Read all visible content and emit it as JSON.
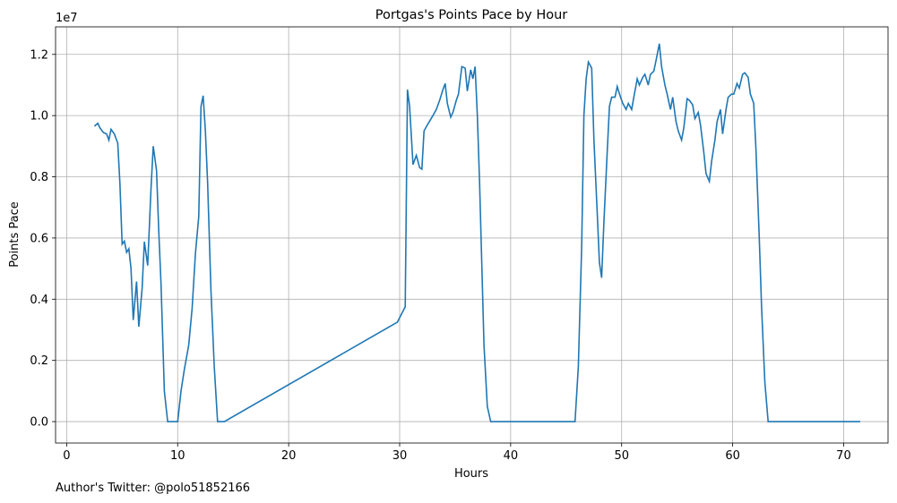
{
  "footer_text": "Author's Twitter: @polo51852166",
  "chart_data": {
    "type": "line",
    "title": "Portgas's Points Pace by Hour",
    "xlabel": "Hours",
    "ylabel": "Points Pace",
    "y_offset_label": "1e7",
    "xlim": [
      -1,
      74
    ],
    "ylim": [
      -0.07,
      1.29
    ],
    "y_scale_note": "values in units of 1e7",
    "x_ticks": [
      0,
      10,
      20,
      30,
      40,
      50,
      60,
      70
    ],
    "x_tick_labels": [
      "0",
      "10",
      "20",
      "30",
      "40",
      "50",
      "60",
      "70"
    ],
    "y_ticks": [
      0.0,
      0.2,
      0.4,
      0.6,
      0.8,
      1.0,
      1.2
    ],
    "y_tick_labels": [
      "0.0",
      "0.2",
      "0.4",
      "0.6",
      "0.8",
      "1.0",
      "1.2"
    ],
    "grid": true,
    "line_color": "#1f77b4",
    "series": [
      {
        "x": [
          2.5,
          2.8,
          3.0,
          3.3,
          3.6,
          3.8,
          4.0,
          4.3,
          4.6,
          4.8,
          5.0,
          5.2,
          5.4,
          5.6,
          5.8,
          6.0,
          6.3,
          6.5,
          6.8,
          7.0,
          7.3,
          7.6,
          7.8,
          8.1,
          8.3,
          8.5,
          8.8,
          9.1,
          9.3,
          9.6,
          10.0,
          10.3,
          10.6,
          11.0,
          11.3,
          11.6,
          11.9,
          12.1,
          12.3,
          12.5,
          12.7,
          13.0,
          13.3,
          13.6,
          13.9,
          14.2,
          29.8,
          30.5,
          30.7,
          30.9,
          31.2,
          31.5,
          31.8,
          32.0,
          32.2,
          32.5,
          33.0,
          33.3,
          33.6,
          33.9,
          34.1,
          34.3,
          34.6,
          34.8,
          35.1,
          35.3,
          35.6,
          35.9,
          36.1,
          36.4,
          36.6,
          36.8,
          37.0,
          37.2,
          37.6,
          37.9,
          38.2,
          45.5,
          45.8,
          46.1,
          46.4,
          46.6,
          46.8,
          47.0,
          47.3,
          47.5,
          47.8,
          48.0,
          48.2,
          48.4,
          48.7,
          48.9,
          49.1,
          49.4,
          49.6,
          49.9,
          50.1,
          50.4,
          50.6,
          50.9,
          51.1,
          51.4,
          51.6,
          51.9,
          52.1,
          52.4,
          52.6,
          52.9,
          53.1,
          53.4,
          53.6,
          53.9,
          54.1,
          54.4,
          54.6,
          54.9,
          55.1,
          55.4,
          55.6,
          55.9,
          56.1,
          56.4,
          56.6,
          56.9,
          57.1,
          57.4,
          57.6,
          57.9,
          58.1,
          58.4,
          58.6,
          58.9,
          59.1,
          59.4,
          59.6,
          59.9,
          60.1,
          60.4,
          60.6,
          60.9,
          61.1,
          61.4,
          61.6,
          61.9,
          62.1,
          62.4,
          62.6,
          62.9,
          63.2,
          71.5
        ],
        "y": [
          0.965,
          0.975,
          0.96,
          0.945,
          0.94,
          0.92,
          0.955,
          0.94,
          0.91,
          0.78,
          0.58,
          0.59,
          0.553,
          0.565,
          0.5,
          0.332,
          0.458,
          0.31,
          0.435,
          0.588,
          0.51,
          0.76,
          0.9,
          0.82,
          0.62,
          0.45,
          0.1,
          0.0,
          0.0,
          0.0,
          0.0,
          0.1,
          0.17,
          0.25,
          0.37,
          0.55,
          0.67,
          1.03,
          1.065,
          0.95,
          0.78,
          0.43,
          0.18,
          0.0,
          0.0,
          0.0,
          0.325,
          0.375,
          1.085,
          1.03,
          0.84,
          0.87,
          0.83,
          0.825,
          0.95,
          0.97,
          1.0,
          1.02,
          1.05,
          1.085,
          1.105,
          1.04,
          0.995,
          1.01,
          1.05,
          1.07,
          1.16,
          1.155,
          1.08,
          1.15,
          1.12,
          1.16,
          1.0,
          0.78,
          0.25,
          0.05,
          0.0,
          0.0,
          0.0,
          0.18,
          0.57,
          1.0,
          1.12,
          1.175,
          1.155,
          0.92,
          0.68,
          0.52,
          0.47,
          0.65,
          0.88,
          1.03,
          1.06,
          1.06,
          1.095,
          1.06,
          1.04,
          1.02,
          1.04,
          1.02,
          1.06,
          1.12,
          1.1,
          1.125,
          1.135,
          1.1,
          1.135,
          1.145,
          1.18,
          1.235,
          1.16,
          1.1,
          1.07,
          1.02,
          1.06,
          0.98,
          0.95,
          0.92,
          0.96,
          1.055,
          1.05,
          1.035,
          0.99,
          1.01,
          0.97,
          0.88,
          0.81,
          0.785,
          0.85,
          0.92,
          0.98,
          1.02,
          0.94,
          1.02,
          1.06,
          1.07,
          1.07,
          1.105,
          1.09,
          1.135,
          1.14,
          1.125,
          1.07,
          1.04,
          0.89,
          0.6,
          0.38,
          0.13,
          0.0,
          0.0
        ]
      }
    ]
  }
}
